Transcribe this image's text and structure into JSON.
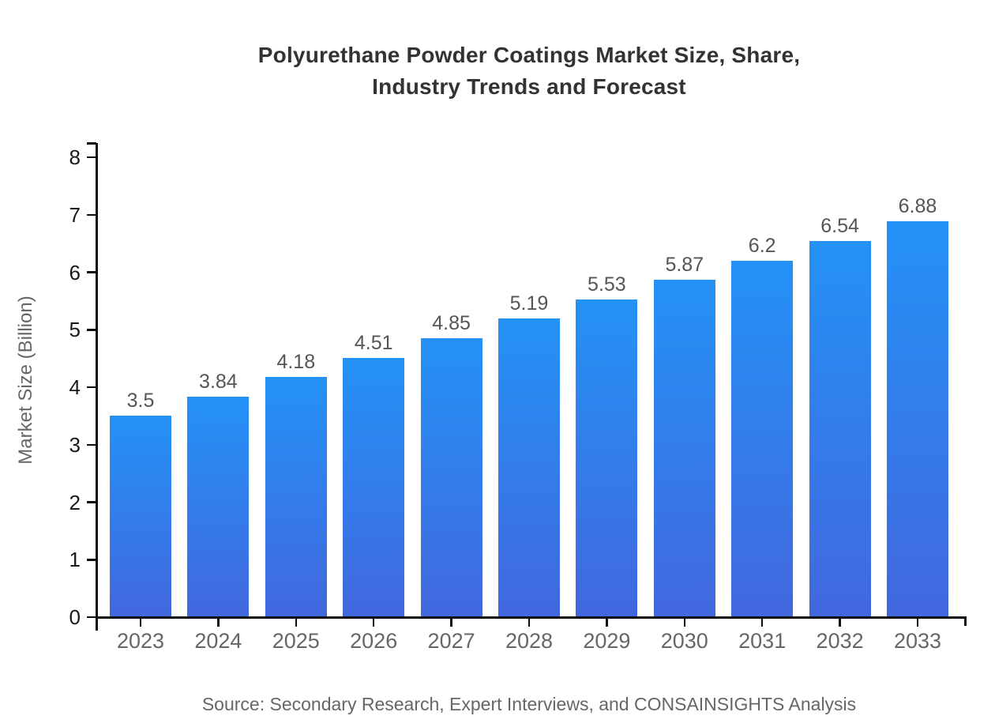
{
  "title_lines": [
    "Polyurethane Powder Coatings Market Size, Share,",
    "Industry Trends and Forecast"
  ],
  "y_axis_label": "Market Size (Billion)",
  "source": "Source: Secondary Research, Expert Interviews, and CONSAINSIGHTS Analysis",
  "colors": {
    "bar_gradient_top": "#2492F5",
    "bar_gradient_bottom": "#4267DE",
    "axis": "#0d0d0d",
    "title": "#333333",
    "y_tick_label": "#1a1a1a",
    "x_tick_label": "#666666",
    "value_label": "#555555",
    "axis_title": "#666666",
    "source_text": "#666666",
    "background": "#ffffff"
  },
  "chart_data": {
    "type": "bar",
    "title": "Polyurethane Powder Coatings Market Size, Share, Industry Trends and Forecast",
    "categories": [
      "2023",
      "2024",
      "2025",
      "2026",
      "2027",
      "2028",
      "2029",
      "2030",
      "2031",
      "2032",
      "2033"
    ],
    "values": [
      3.5,
      3.84,
      4.18,
      4.51,
      4.85,
      5.19,
      5.53,
      5.87,
      6.2,
      6.54,
      6.88
    ],
    "value_labels": [
      "3.5",
      "3.84",
      "4.18",
      "4.51",
      "4.85",
      "5.19",
      "5.53",
      "5.87",
      "6.2",
      "6.54",
      "6.88"
    ],
    "xlabel": "",
    "ylabel": "Market Size (Billion)",
    "ylim": [
      0,
      8
    ],
    "y_ticks": [
      0,
      1,
      2,
      3,
      4,
      5,
      6,
      7,
      8
    ],
    "grid": false,
    "legend": false,
    "caption": "Source: Secondary Research, Expert Interviews, and CONSAINSIGHTS Analysis"
  }
}
